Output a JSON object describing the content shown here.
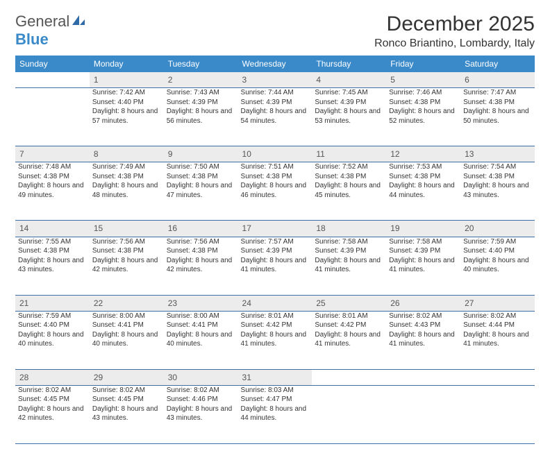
{
  "logo": {
    "general": "General",
    "blue": "Blue"
  },
  "month_title": "December 2025",
  "location": "Ronco Briantino, Lombardy, Italy",
  "colors": {
    "header_bg": "#3a89c9",
    "header_text": "#ffffff",
    "daynum_bg": "#ececec",
    "border": "#3a6ea5",
    "text": "#333333",
    "logo_gray": "#555555",
    "logo_blue": "#3a89c9"
  },
  "weekdays": [
    "Sunday",
    "Monday",
    "Tuesday",
    "Wednesday",
    "Thursday",
    "Friday",
    "Saturday"
  ],
  "weeks": [
    {
      "nums": [
        "",
        "1",
        "2",
        "3",
        "4",
        "5",
        "6"
      ],
      "cells": [
        "",
        "Sunrise: 7:42 AM\nSunset: 4:40 PM\nDaylight: 8 hours and 57 minutes.",
        "Sunrise: 7:43 AM\nSunset: 4:39 PM\nDaylight: 8 hours and 56 minutes.",
        "Sunrise: 7:44 AM\nSunset: 4:39 PM\nDaylight: 8 hours and 54 minutes.",
        "Sunrise: 7:45 AM\nSunset: 4:39 PM\nDaylight: 8 hours and 53 minutes.",
        "Sunrise: 7:46 AM\nSunset: 4:38 PM\nDaylight: 8 hours and 52 minutes.",
        "Sunrise: 7:47 AM\nSunset: 4:38 PM\nDaylight: 8 hours and 50 minutes."
      ]
    },
    {
      "nums": [
        "7",
        "8",
        "9",
        "10",
        "11",
        "12",
        "13"
      ],
      "cells": [
        "Sunrise: 7:48 AM\nSunset: 4:38 PM\nDaylight: 8 hours and 49 minutes.",
        "Sunrise: 7:49 AM\nSunset: 4:38 PM\nDaylight: 8 hours and 48 minutes.",
        "Sunrise: 7:50 AM\nSunset: 4:38 PM\nDaylight: 8 hours and 47 minutes.",
        "Sunrise: 7:51 AM\nSunset: 4:38 PM\nDaylight: 8 hours and 46 minutes.",
        "Sunrise: 7:52 AM\nSunset: 4:38 PM\nDaylight: 8 hours and 45 minutes.",
        "Sunrise: 7:53 AM\nSunset: 4:38 PM\nDaylight: 8 hours and 44 minutes.",
        "Sunrise: 7:54 AM\nSunset: 4:38 PM\nDaylight: 8 hours and 43 minutes."
      ]
    },
    {
      "nums": [
        "14",
        "15",
        "16",
        "17",
        "18",
        "19",
        "20"
      ],
      "cells": [
        "Sunrise: 7:55 AM\nSunset: 4:38 PM\nDaylight: 8 hours and 43 minutes.",
        "Sunrise: 7:56 AM\nSunset: 4:38 PM\nDaylight: 8 hours and 42 minutes.",
        "Sunrise: 7:56 AM\nSunset: 4:38 PM\nDaylight: 8 hours and 42 minutes.",
        "Sunrise: 7:57 AM\nSunset: 4:39 PM\nDaylight: 8 hours and 41 minutes.",
        "Sunrise: 7:58 AM\nSunset: 4:39 PM\nDaylight: 8 hours and 41 minutes.",
        "Sunrise: 7:58 AM\nSunset: 4:39 PM\nDaylight: 8 hours and 41 minutes.",
        "Sunrise: 7:59 AM\nSunset: 4:40 PM\nDaylight: 8 hours and 40 minutes."
      ]
    },
    {
      "nums": [
        "21",
        "22",
        "23",
        "24",
        "25",
        "26",
        "27"
      ],
      "cells": [
        "Sunrise: 7:59 AM\nSunset: 4:40 PM\nDaylight: 8 hours and 40 minutes.",
        "Sunrise: 8:00 AM\nSunset: 4:41 PM\nDaylight: 8 hours and 40 minutes.",
        "Sunrise: 8:00 AM\nSunset: 4:41 PM\nDaylight: 8 hours and 40 minutes.",
        "Sunrise: 8:01 AM\nSunset: 4:42 PM\nDaylight: 8 hours and 41 minutes.",
        "Sunrise: 8:01 AM\nSunset: 4:42 PM\nDaylight: 8 hours and 41 minutes.",
        "Sunrise: 8:02 AM\nSunset: 4:43 PM\nDaylight: 8 hours and 41 minutes.",
        "Sunrise: 8:02 AM\nSunset: 4:44 PM\nDaylight: 8 hours and 41 minutes."
      ]
    },
    {
      "nums": [
        "28",
        "29",
        "30",
        "31",
        "",
        "",
        ""
      ],
      "cells": [
        "Sunrise: 8:02 AM\nSunset: 4:45 PM\nDaylight: 8 hours and 42 minutes.",
        "Sunrise: 8:02 AM\nSunset: 4:45 PM\nDaylight: 8 hours and 43 minutes.",
        "Sunrise: 8:02 AM\nSunset: 4:46 PM\nDaylight: 8 hours and 43 minutes.",
        "Sunrise: 8:03 AM\nSunset: 4:47 PM\nDaylight: 8 hours and 44 minutes.",
        "",
        "",
        ""
      ]
    }
  ]
}
